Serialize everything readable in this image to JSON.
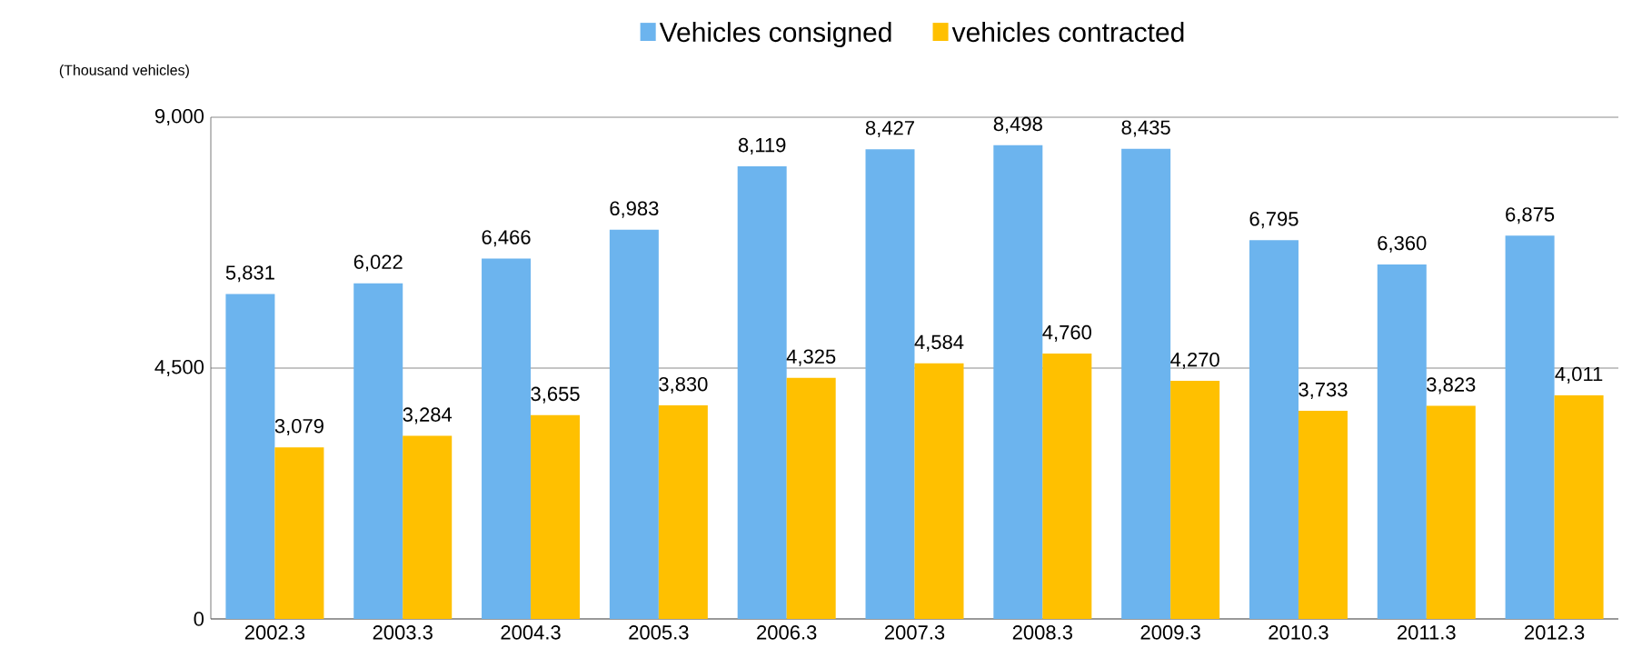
{
  "chart_data": {
    "type": "bar",
    "ylabel": "(Thousand vehicles)",
    "categories": [
      "2002.3",
      "2003.3",
      "2004.3",
      "2005.3",
      "2006.3",
      "2007.3",
      "2008.3",
      "2009.3",
      "2010.3",
      "2011.3",
      "2012.3"
    ],
    "series": [
      {
        "name": "Vehicles consigned",
        "color": "#6cb4ee",
        "values": [
          5831,
          6022,
          6466,
          6983,
          8119,
          8427,
          8498,
          8435,
          6795,
          6360,
          6875
        ],
        "value_labels": [
          "5,831",
          "6,022",
          "6,466",
          "6,983",
          "8,119",
          "8,427",
          "8,498",
          "8,435",
          "6,795",
          "6,360",
          "6,875"
        ]
      },
      {
        "name": "vehicles contracted",
        "color": "#ffc000",
        "values": [
          3079,
          3284,
          3655,
          3830,
          4325,
          4584,
          4760,
          4270,
          3733,
          3823,
          4011
        ],
        "value_labels": [
          "3,079",
          "3,284",
          "3,655",
          "3,830",
          "4,325",
          "4,584",
          "4,760",
          "4,270",
          "3,733",
          "3,823",
          "4,011"
        ]
      }
    ],
    "ylim": [
      0,
      9000
    ],
    "yticks": [
      0,
      {
        "value": 4500,
        "label": "4,500"
      },
      {
        "value": 9000,
        "label": "9,000"
      }
    ],
    "grid": "y",
    "legend": "top"
  }
}
